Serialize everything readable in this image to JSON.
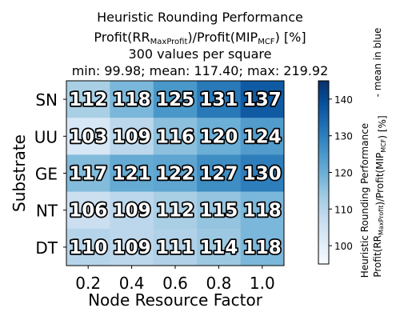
{
  "chart_data": {
    "type": "heatmap",
    "title_lines": [
      "Heuristic Rounding Performance",
      {
        "parts": [
          [
            "Profit(RR",
            ""
          ],
          [
            "MaxProfit",
            "sub"
          ],
          [
            ")/Profit(MIP",
            ""
          ],
          [
            "MCF",
            "sub"
          ],
          [
            ") [%]",
            ""
          ]
        ]
      },
      "300 values per square",
      "min: 99.98; mean: 117.40; max: 219.92"
    ],
    "xlabel": "Node Resource Factor",
    "ylabel": "Substrate",
    "x_categories": [
      "0.2",
      "0.4",
      "0.6",
      "0.8",
      "1.0"
    ],
    "y_categories": [
      "SN",
      "UU",
      "GE",
      "NT",
      "DT"
    ],
    "values": [
      [
        112,
        118,
        125,
        131,
        137
      ],
      [
        103,
        109,
        116,
        120,
        124
      ],
      [
        117,
        121,
        122,
        127,
        130
      ],
      [
        106,
        109,
        112,
        115,
        118
      ],
      [
        110,
        109,
        111,
        114,
        118
      ]
    ],
    "colorbar": {
      "range": [
        95,
        145
      ],
      "ticks": [
        "100",
        "110",
        "120",
        "130",
        "140"
      ],
      "tick_values": [
        100,
        110,
        120,
        130,
        140
      ],
      "label_line1": "Heuristic Rounding Performance",
      "label_line2_parts": [
        [
          "Profit(RR",
          ""
        ],
        [
          "MaxProfit",
          "sub"
        ],
        [
          ")/Profit(MIP",
          ""
        ],
        [
          "MCF",
          "sub"
        ],
        [
          ") [%]",
          ""
        ]
      ],
      "side_label": "- mean in blue"
    },
    "colormap": "Blues"
  }
}
